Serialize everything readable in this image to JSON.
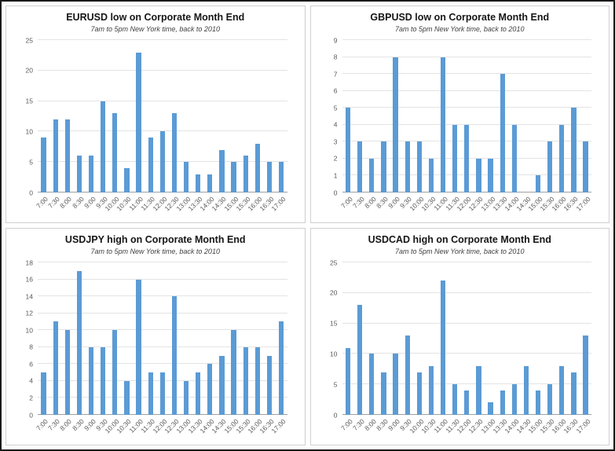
{
  "page": {
    "background": "#ffffff",
    "bar_color": "#5B9BD5",
    "grid_color": "#e3e3e3"
  },
  "chart_data": [
    {
      "type": "bar",
      "title": "EURUSD low on Corporate Month End",
      "subtitle": "7am to 5pm New York time, back to 2010",
      "categories": [
        "7:00",
        "7:30",
        "8:00",
        "8:30",
        "9:00",
        "9:30",
        "10:00",
        "10:30",
        "11:00",
        "11:30",
        "12:00",
        "12:30",
        "13:00",
        "13:30",
        "14:00",
        "14:30",
        "15:00",
        "15:30",
        "16:00",
        "16:30",
        "17:00"
      ],
      "values": [
        9,
        12,
        12,
        6,
        6,
        15,
        13,
        4,
        23,
        9,
        10,
        13,
        5,
        3,
        3,
        7,
        5,
        6,
        8,
        5,
        5
      ],
      "xlabel": "",
      "ylabel": "",
      "ylim": [
        0,
        25
      ],
      "ytick": 5,
      "bar_color": "#5B9BD5",
      "grid": true,
      "legend": "none"
    },
    {
      "type": "bar",
      "title": "GBPUSD low on Corporate Month End",
      "subtitle": "7am to 5pm New York time, back to 2010",
      "categories": [
        "7:00",
        "7:30",
        "8:00",
        "8:30",
        "9:00",
        "9:30",
        "10:00",
        "10:30",
        "11:00",
        "11:30",
        "12:00",
        "12:30",
        "13:00",
        "13:30",
        "14:00",
        "14:30",
        "15:00",
        "15:30",
        "16:00",
        "16:30",
        "17:00"
      ],
      "values": [
        5,
        3,
        2,
        3,
        8,
        3,
        3,
        2,
        8,
        4,
        4,
        2,
        2,
        7,
        4,
        0,
        1,
        3,
        4,
        5,
        3
      ],
      "xlabel": "",
      "ylabel": "",
      "ylim": [
        0,
        9
      ],
      "ytick": 1,
      "bar_color": "#5B9BD5",
      "grid": true,
      "legend": "none"
    },
    {
      "type": "bar",
      "title": "USDJPY high on Corporate Month End",
      "subtitle": "7am to 5pm New York time, back to 2010",
      "categories": [
        "7:00",
        "7:30",
        "8:00",
        "8:30",
        "9:00",
        "9:30",
        "10:00",
        "10:30",
        "11:00",
        "11:30",
        "12:00",
        "12:30",
        "13:00",
        "13:30",
        "14:00",
        "14:30",
        "15:00",
        "15:30",
        "16:00",
        "16:30",
        "17:00"
      ],
      "values": [
        5,
        11,
        10,
        17,
        8,
        8,
        10,
        4,
        16,
        5,
        5,
        14,
        4,
        5,
        6,
        7,
        10,
        8,
        8,
        7,
        11
      ],
      "xlabel": "",
      "ylabel": "",
      "ylim": [
        0,
        18
      ],
      "ytick": 2,
      "bar_color": "#5B9BD5",
      "grid": true,
      "legend": "none"
    },
    {
      "type": "bar",
      "title": "USDCAD high on Corporate Month End",
      "subtitle": "7am to 5pm New York time, back to 2010",
      "categories": [
        "7:00",
        "7:30",
        "8:00",
        "8:30",
        "9:00",
        "9:30",
        "10:00",
        "10:30",
        "11:00",
        "11:30",
        "12:00",
        "12:30",
        "13:00",
        "13:30",
        "14:00",
        "14:30",
        "15:00",
        "15:30",
        "16:00",
        "16:30",
        "17:00"
      ],
      "values": [
        11,
        18,
        10,
        7,
        10,
        13,
        7,
        8,
        22,
        5,
        4,
        8,
        2,
        4,
        5,
        8,
        4,
        5,
        8,
        7,
        13
      ],
      "xlabel": "",
      "ylabel": "",
      "ylim": [
        0,
        25
      ],
      "ytick": 5,
      "bar_color": "#5B9BD5",
      "grid": true,
      "legend": "none"
    }
  ]
}
